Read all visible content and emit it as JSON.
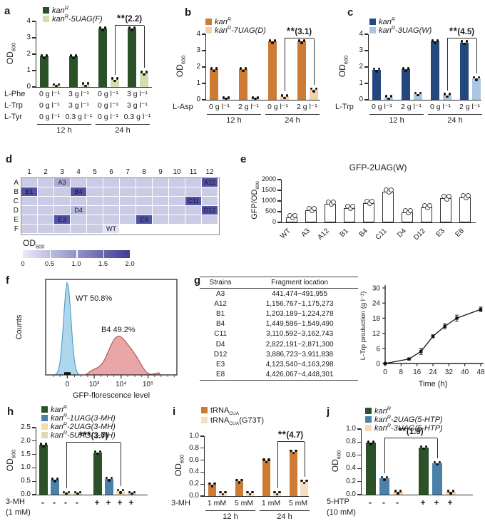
{
  "panel_labels": {
    "a": "a",
    "b": "b",
    "c": "c",
    "d": "d",
    "e": "e",
    "f": "f",
    "g": "g",
    "h": "h",
    "i": "i",
    "j": "j"
  },
  "chart_data": [
    {
      "id": "a",
      "panel": "a",
      "type": "bar",
      "ylabel": {
        "main": "OD",
        "sub": "600"
      },
      "ylim": [
        0,
        4
      ],
      "yticks": [
        0,
        1,
        2,
        3,
        4
      ],
      "ytick_labels": [
        "0",
        "1",
        "2",
        "3",
        "4"
      ],
      "legend": [
        {
          "color": "#2a5127",
          "label": [
            {
              "t": "kan",
              "it": 1
            },
            {
              "t": "R",
              "it": 1,
              "sup": 1
            }
          ]
        },
        {
          "color": "#cfdfad",
          "label": [
            {
              "t": "kan",
              "it": 1
            },
            {
              "t": "R",
              "it": 1,
              "sup": 1
            },
            {
              "t": "-5UAG(F)",
              "it": 1
            }
          ]
        }
      ],
      "series": [
        {
          "name": "kanR",
          "color": "#2a5127",
          "values": [
            1.85,
            1.85,
            3.55,
            3.55
          ]
        },
        {
          "name": "kanR-5UAG(F)",
          "color": "#cfdfad",
          "values": [
            0.08,
            0.15,
            0.45,
            0.85
          ]
        }
      ],
      "sig": {
        "stars": "**",
        "note": "(2.2)",
        "from": [
          1,
          2
        ],
        "to": [
          1,
          3
        ]
      },
      "xrows": [
        {
          "label": "L-Phe",
          "cells": [
            "0 g l⁻¹",
            "3 g l⁻¹",
            "0 g l⁻¹",
            "3 g l⁻¹"
          ]
        },
        {
          "label": "L-Trp",
          "cells": [
            "0 g l⁻¹",
            "3 g l⁻¹",
            "0 g l⁻¹",
            "3 g l⁻¹"
          ]
        },
        {
          "label": "L-Tyr",
          "cells": [
            "0 g l⁻¹",
            "0.3 g l⁻¹",
            "0 g l⁻¹",
            "0.3 g l⁻¹"
          ]
        }
      ],
      "group_labels": [
        {
          "text": "12 h",
          "span": [
            0,
            1
          ]
        },
        {
          "text": "24 h",
          "span": [
            2,
            3
          ]
        }
      ]
    },
    {
      "id": "b",
      "panel": "b",
      "type": "bar",
      "ylabel": {
        "main": "OD",
        "sub": "600"
      },
      "ylim": [
        0,
        4
      ],
      "yticks": [
        0,
        1,
        2,
        3,
        4
      ],
      "ytick_labels": [
        "0",
        "1",
        "2",
        "3",
        "4"
      ],
      "legend": [
        {
          "color": "#cd7a33",
          "label": [
            {
              "t": "kan",
              "it": 1
            },
            {
              "t": "R",
              "it": 1,
              "sup": 1
            }
          ]
        },
        {
          "color": "#f2d3a9",
          "label": [
            {
              "t": "kan",
              "it": 1
            },
            {
              "t": "R",
              "it": 1,
              "sup": 1
            },
            {
              "t": "-7UAG(D)",
              "it": 1
            }
          ]
        }
      ],
      "series": [
        {
          "name": "kanR",
          "color": "#cd7a33",
          "values": [
            1.85,
            1.85,
            3.55,
            3.55
          ]
        },
        {
          "name": "kanR-7UAG(D)",
          "color": "#f2d3a9",
          "values": [
            0.07,
            0.07,
            0.2,
            0.6
          ]
        }
      ],
      "sig": {
        "stars": "**",
        "note": "(3.1)",
        "from": [
          1,
          2
        ],
        "to": [
          1,
          3
        ]
      },
      "xrows": [
        {
          "label": "L-Asp",
          "cells": [
            "0 g l⁻¹",
            "2 g l⁻¹",
            "0 g l⁻¹",
            "2 g l⁻¹"
          ]
        }
      ],
      "group_labels": [
        {
          "text": "12 h",
          "span": [
            0,
            1
          ]
        },
        {
          "text": "24 h",
          "span": [
            2,
            3
          ]
        }
      ]
    },
    {
      "id": "c",
      "panel": "c",
      "type": "bar",
      "ylabel": {
        "main": "OD",
        "sub": "600"
      },
      "ylim": [
        0,
        4
      ],
      "yticks": [
        0,
        1,
        2,
        3,
        4
      ],
      "ytick_labels": [
        "0",
        "1",
        "2",
        "3",
        "4"
      ],
      "legend": [
        {
          "color": "#24477e",
          "label": [
            {
              "t": "kan",
              "it": 1
            },
            {
              "t": "R",
              "it": 1,
              "sup": 1
            }
          ]
        },
        {
          "color": "#a9c6e3",
          "label": [
            {
              "t": "kan",
              "it": 1
            },
            {
              "t": "R",
              "it": 1,
              "sup": 1
            },
            {
              "t": "-3UAG(W)",
              "it": 1
            }
          ]
        }
      ],
      "series": [
        {
          "name": "kanR",
          "color": "#24477e",
          "values": [
            1.82,
            1.85,
            3.55,
            3.5
          ]
        },
        {
          "name": "kanR-3UAG(W)",
          "color": "#a9c6e3",
          "values": [
            0.15,
            0.35,
            0.28,
            1.3
          ]
        }
      ],
      "sig": {
        "stars": "**",
        "note": "(4.5)",
        "from": [
          1,
          2
        ],
        "to": [
          1,
          3
        ]
      },
      "xrows": [
        {
          "label": "L-Trp",
          "cells": [
            "0 g l⁻¹",
            "2 g l⁻¹",
            "0 g l⁻¹",
            "2 g l⁻¹"
          ]
        }
      ],
      "group_labels": [
        {
          "text": "12 h",
          "span": [
            0,
            1
          ]
        },
        {
          "text": "24 h",
          "span": [
            2,
            3
          ]
        }
      ]
    },
    {
      "id": "d",
      "panel": "d",
      "type": "heatmap",
      "col_labels": [
        "1",
        "2",
        "3",
        "4",
        "5",
        "6",
        "7",
        "8",
        "9",
        "10",
        "11",
        "12"
      ],
      "row_labels": [
        "A",
        "B",
        "C",
        "D",
        "E",
        "F"
      ],
      "value_range": [
        0,
        2
      ],
      "default_value": 0.35,
      "min_color": "#e9e9f7",
      "max_color": "#3c3c97",
      "cells": [
        {
          "id": "A3",
          "label": "A3",
          "value": 0.7
        },
        {
          "id": "A12",
          "label": "A12",
          "value": 1.75
        },
        {
          "id": "B1",
          "label": "B1",
          "value": 1.75
        },
        {
          "id": "B4",
          "label": "B4",
          "value": 1.75
        },
        {
          "id": "C11",
          "label": "C11",
          "value": 1.75
        },
        {
          "id": "D4",
          "label": "D4",
          "value": 0.55
        },
        {
          "id": "D12",
          "label": "D12",
          "value": 1.75
        },
        {
          "id": "E3",
          "label": "E3",
          "value": 1.75
        },
        {
          "id": "E8",
          "label": "E8",
          "value": 1.75
        },
        {
          "id": "F6",
          "label": "WT",
          "value": 0.1
        }
      ],
      "empty_cells": [
        "F7",
        "F8",
        "F9",
        "F10",
        "F11",
        "F12"
      ],
      "colorbar": {
        "label": {
          "main": "OD",
          "sub": "600"
        },
        "ticks": [
          "0",
          "0.5",
          "1.0",
          "1.5",
          "2.0"
        ]
      }
    },
    {
      "id": "e",
      "panel": "e",
      "type": "bar",
      "title": "GFP-2UAG(W)",
      "ylabel": {
        "main": "GFP/OD",
        "sub": "600"
      },
      "ylim": [
        0,
        2000
      ],
      "yticks": [
        0,
        500,
        1000,
        1500,
        2000
      ],
      "ytick_labels": [
        "0",
        "500",
        "1000",
        "1500",
        "2000"
      ],
      "bar_outline": true,
      "dot_style": "open",
      "categories_rotated": true,
      "categories": [
        "WT",
        "A3",
        "A12",
        "B1",
        "B4",
        "C11",
        "D4",
        "D12",
        "E3",
        "E8"
      ],
      "series": [
        {
          "name": "GFP/OD600",
          "color": "#ffffff",
          "values": [
            230,
            570,
            870,
            680,
            900,
            1430,
            470,
            700,
            1120,
            1180
          ]
        }
      ]
    },
    {
      "id": "f",
      "panel": "f",
      "type": "flow_histogram",
      "ylabel": "Counts",
      "xlabel": "GFP-florescence level",
      "xticks": [
        "0",
        "10³",
        "10⁴",
        "10⁵"
      ],
      "peaks": [
        {
          "name": "WT",
          "annotation": "WT 50.8%",
          "fill": "#aed7ee",
          "stroke": "#4a9cc4",
          "center_frac": 0.165,
          "sigma_frac": 0.028,
          "height_frac": 0.97
        },
        {
          "name": "B4",
          "annotation": "B4 49.2%",
          "fill": "#e9a6a6",
          "stroke": "#b05050",
          "center_frac": 0.57,
          "sigma_frac": 0.095,
          "height_frac": 0.4
        }
      ]
    },
    {
      "id": "g_table",
      "panel": "g",
      "type": "table",
      "headers": [
        "Strains",
        "Fragment location"
      ],
      "rows": [
        [
          "A3",
          "441,474~491,955"
        ],
        [
          "A12",
          "1,156,767~1,175,273"
        ],
        [
          "B1",
          "1,203,189~1,224,278"
        ],
        [
          "B4",
          "1,449,596~1,549,490"
        ],
        [
          "C11",
          "3,110,592~3,162,743"
        ],
        [
          "D4",
          "2,822,191~2,871,300"
        ],
        [
          "D12",
          "3,886,723~3,911,838"
        ],
        [
          "E3",
          "4,123,540~4,163,298"
        ],
        [
          "E8",
          "4,426,067~4,448,301"
        ]
      ]
    },
    {
      "id": "g_line",
      "panel": "g",
      "type": "line",
      "xlabel": "Time (h)",
      "ylabel": "L-Trp production (g l⁻¹)",
      "x": [
        0,
        12,
        18,
        24,
        30,
        36,
        48
      ],
      "y": [
        0,
        1.8,
        4.8,
        10.8,
        14.8,
        18,
        21.5
      ],
      "yerr": [
        0.1,
        0.3,
        1.2,
        0.6,
        1.0,
        1.2,
        0.9
      ],
      "xlim": [
        0,
        48
      ],
      "ylim": [
        0,
        30
      ],
      "xticks": [
        0,
        8,
        16,
        24,
        32,
        40,
        48
      ],
      "yticks": [
        0,
        6,
        12,
        18,
        24,
        30
      ]
    },
    {
      "id": "h",
      "panel": "h",
      "type": "bar",
      "ylabel": {
        "main": "OD",
        "sub": "600"
      },
      "ylim": [
        0,
        2.5
      ],
      "yticks": [
        0,
        0.5,
        1,
        1.5,
        2,
        2.5
      ],
      "ytick_labels": [
        "0.0",
        "0.5",
        "1.0",
        "1.5",
        "2.0",
        "2.5"
      ],
      "legend": [
        {
          "color": "#2a5127",
          "label": [
            {
              "t": "kan",
              "it": 1
            },
            {
              "t": "R",
              "it": 1,
              "sup": 1
            }
          ]
        },
        {
          "color": "#4b80a8",
          "label": [
            {
              "t": "kan",
              "it": 1
            },
            {
              "t": "R",
              "it": 1,
              "sup": 1
            },
            {
              "t": "-1UAG(3-MH)",
              "it": 1
            }
          ]
        },
        {
          "color": "#f7d9b4",
          "label": [
            {
              "t": "kan",
              "it": 1
            },
            {
              "t": "R",
              "it": 1,
              "sup": 1
            },
            {
              "t": "-2UAG(3-MH)",
              "it": 1
            }
          ]
        },
        {
          "color": "#ded7b8",
          "label": [
            {
              "t": "kan",
              "it": 1
            },
            {
              "t": "R",
              "it": 1,
              "sup": 1
            },
            {
              "t": "-5UAG(3-MH)",
              "it": 1
            }
          ]
        }
      ],
      "series": [
        {
          "name": "kanR",
          "color": "#2a5127",
          "values": [
            1.85,
            1.57
          ]
        },
        {
          "name": "kanR-1UAG(3-MH)",
          "color": "#4b80a8",
          "values": [
            0.55,
            0.58
          ]
        },
        {
          "name": "kanR-2UAG(3-MH)",
          "color": "#f7d9b4",
          "values": [
            0.05,
            0.13
          ]
        },
        {
          "name": "kanR-5UAG(3-MH)",
          "color": "#ded7b8",
          "values": [
            0.05,
            0.05
          ]
        }
      ],
      "sig": {
        "stars": "***",
        "note": "(3.7)",
        "from": [
          2,
          0
        ],
        "to": [
          2,
          1
        ]
      },
      "xrows": [
        {
          "label": "3-MH",
          "cells": [
            "-",
            "-",
            "-",
            "-",
            "+",
            "+",
            "+",
            "+"
          ]
        },
        {
          "label": "(1 mM)",
          "cells": []
        }
      ]
    },
    {
      "id": "i",
      "panel": "i",
      "type": "bar",
      "ylabel": {
        "main": "OD",
        "sub": "600"
      },
      "ylim": [
        0,
        1
      ],
      "yticks": [
        0,
        0.2,
        0.4,
        0.6,
        0.8,
        1
      ],
      "ytick_labels": [
        "0.0",
        "0.2",
        "0.4",
        "0.6",
        "0.8",
        "1.0"
      ],
      "legend": [
        {
          "color": "#cd7a33",
          "label": [
            {
              "t": "tRNA"
            },
            {
              "t": "CUA",
              "sbb": 1
            }
          ]
        },
        {
          "color": "#f5ddbd",
          "label": [
            {
              "t": "tRNA"
            },
            {
              "t": "CUA",
              "sbb": 1
            },
            {
              "t": "(G73T)"
            }
          ]
        }
      ],
      "series": [
        {
          "name": "tRNA_CUA",
          "color": "#cd7a33",
          "values": [
            0.19,
            0.25,
            0.59,
            0.74
          ]
        },
        {
          "name": "tRNA_CUA(G73T)",
          "color": "#f5ddbd",
          "values": [
            0.05,
            0.05,
            0.05,
            0.24
          ]
        }
      ],
      "sig": {
        "stars": "**",
        "note": "(4.7)",
        "from": [
          1,
          2
        ],
        "to": [
          1,
          3
        ]
      },
      "xrows": [
        {
          "label": "3-MH",
          "cells": [
            "1 mM",
            "5 mM",
            "1 mM",
            "5 mM"
          ]
        }
      ],
      "group_labels": [
        {
          "text": "12 h",
          "span": [
            0,
            1
          ]
        },
        {
          "text": "24 h",
          "span": [
            2,
            3
          ]
        }
      ]
    },
    {
      "id": "j",
      "panel": "j",
      "type": "bar",
      "ylabel": {
        "main": "OD",
        "sub": "600"
      },
      "ylim": [
        0,
        1
      ],
      "yticks": [
        0,
        0.2,
        0.4,
        0.6,
        0.8,
        1
      ],
      "ytick_labels": [
        "0.0",
        "0.2",
        "0.4",
        "0.6",
        "0.8",
        "1.0"
      ],
      "legend": [
        {
          "color": "#2a5127",
          "label": [
            {
              "t": "kan",
              "it": 1
            },
            {
              "t": "R",
              "it": 1,
              "sup": 1
            }
          ]
        },
        {
          "color": "#4b80a8",
          "label": [
            {
              "t": "kan",
              "it": 1
            },
            {
              "t": "R",
              "it": 1,
              "sup": 1
            },
            {
              "t": "-2UAG(5-HTP)",
              "it": 1
            }
          ]
        },
        {
          "color": "#f7d9b4",
          "label": [
            {
              "t": "kan",
              "it": 1
            },
            {
              "t": "R",
              "it": 1,
              "sup": 1
            },
            {
              "t": "-3UAG(5-HTP)",
              "it": 1
            }
          ]
        }
      ],
      "series": [
        {
          "name": "kanR",
          "color": "#2a5127",
          "values": [
            0.79,
            0.72
          ]
        },
        {
          "name": "kanR-2UAG(5-HTP)",
          "color": "#4b80a8",
          "values": [
            0.25,
            0.48
          ]
        },
        {
          "name": "kanR-3UAG(5-HTP)",
          "color": "#f7d9b4",
          "values": [
            0.04,
            0.04
          ]
        }
      ],
      "sig": {
        "stars": "**",
        "note": "(1.9)",
        "from": [
          1,
          0
        ],
        "to": [
          1,
          1
        ]
      },
      "xrows": [
        {
          "label": "5-HTP",
          "cells": [
            "-",
            "-",
            "-",
            "+",
            "+",
            "+"
          ]
        },
        {
          "label": "(10 mM)",
          "cells": []
        }
      ]
    }
  ]
}
